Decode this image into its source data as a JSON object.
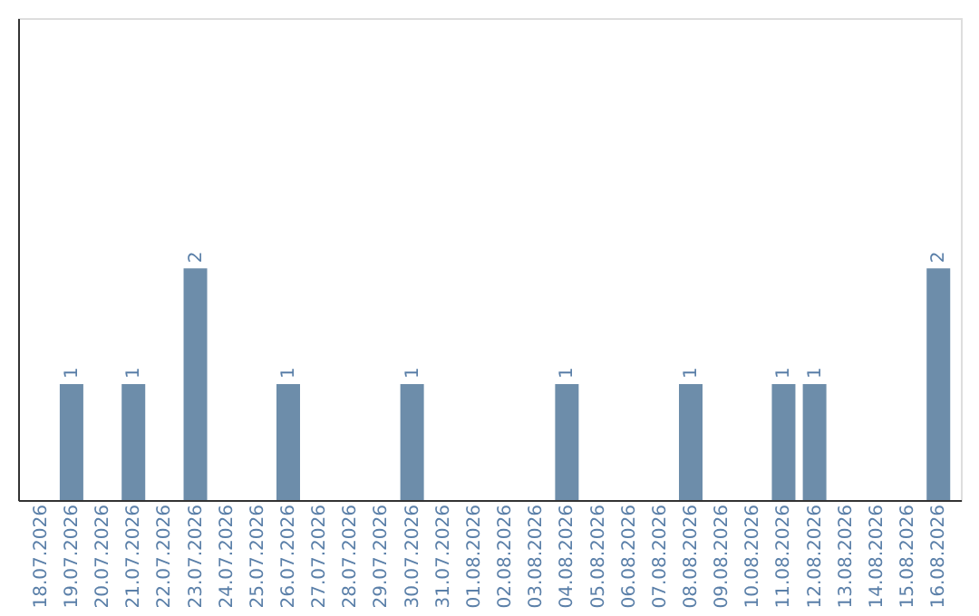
{
  "chart_data": {
    "type": "bar",
    "categories": [
      "18.07.2026",
      "19.07.2026",
      "20.07.2026",
      "21.07.2026",
      "22.07.2026",
      "23.07.2026",
      "24.07.2026",
      "25.07.2026",
      "26.07.2026",
      "27.07.2026",
      "28.07.2026",
      "29.07.2026",
      "30.07.2026",
      "31.07.2026",
      "01.08.2026",
      "02.08.2026",
      "03.08.2026",
      "04.08.2026",
      "05.08.2026",
      "06.08.2026",
      "07.08.2026",
      "08.08.2026",
      "09.08.2026",
      "10.08.2026",
      "11.08.2026",
      "12.08.2026",
      "13.08.2026",
      "14.08.2026",
      "15.08.2026",
      "16.08.2026"
    ],
    "values": [
      0,
      1,
      0,
      1,
      0,
      2,
      0,
      0,
      1,
      0,
      0,
      0,
      1,
      0,
      0,
      0,
      0,
      1,
      0,
      0,
      0,
      1,
      0,
      0,
      1,
      1,
      0,
      0,
      0,
      2
    ],
    "value_labels": [
      null,
      "1",
      null,
      "1",
      null,
      "2",
      null,
      null,
      "1",
      null,
      null,
      null,
      "1",
      null,
      null,
      null,
      null,
      "1",
      null,
      null,
      null,
      "1",
      null,
      null,
      "1",
      "1",
      null,
      null,
      null,
      "2"
    ],
    "color": "#6d8daa",
    "tick_labels": "x",
    "grid": false
  }
}
